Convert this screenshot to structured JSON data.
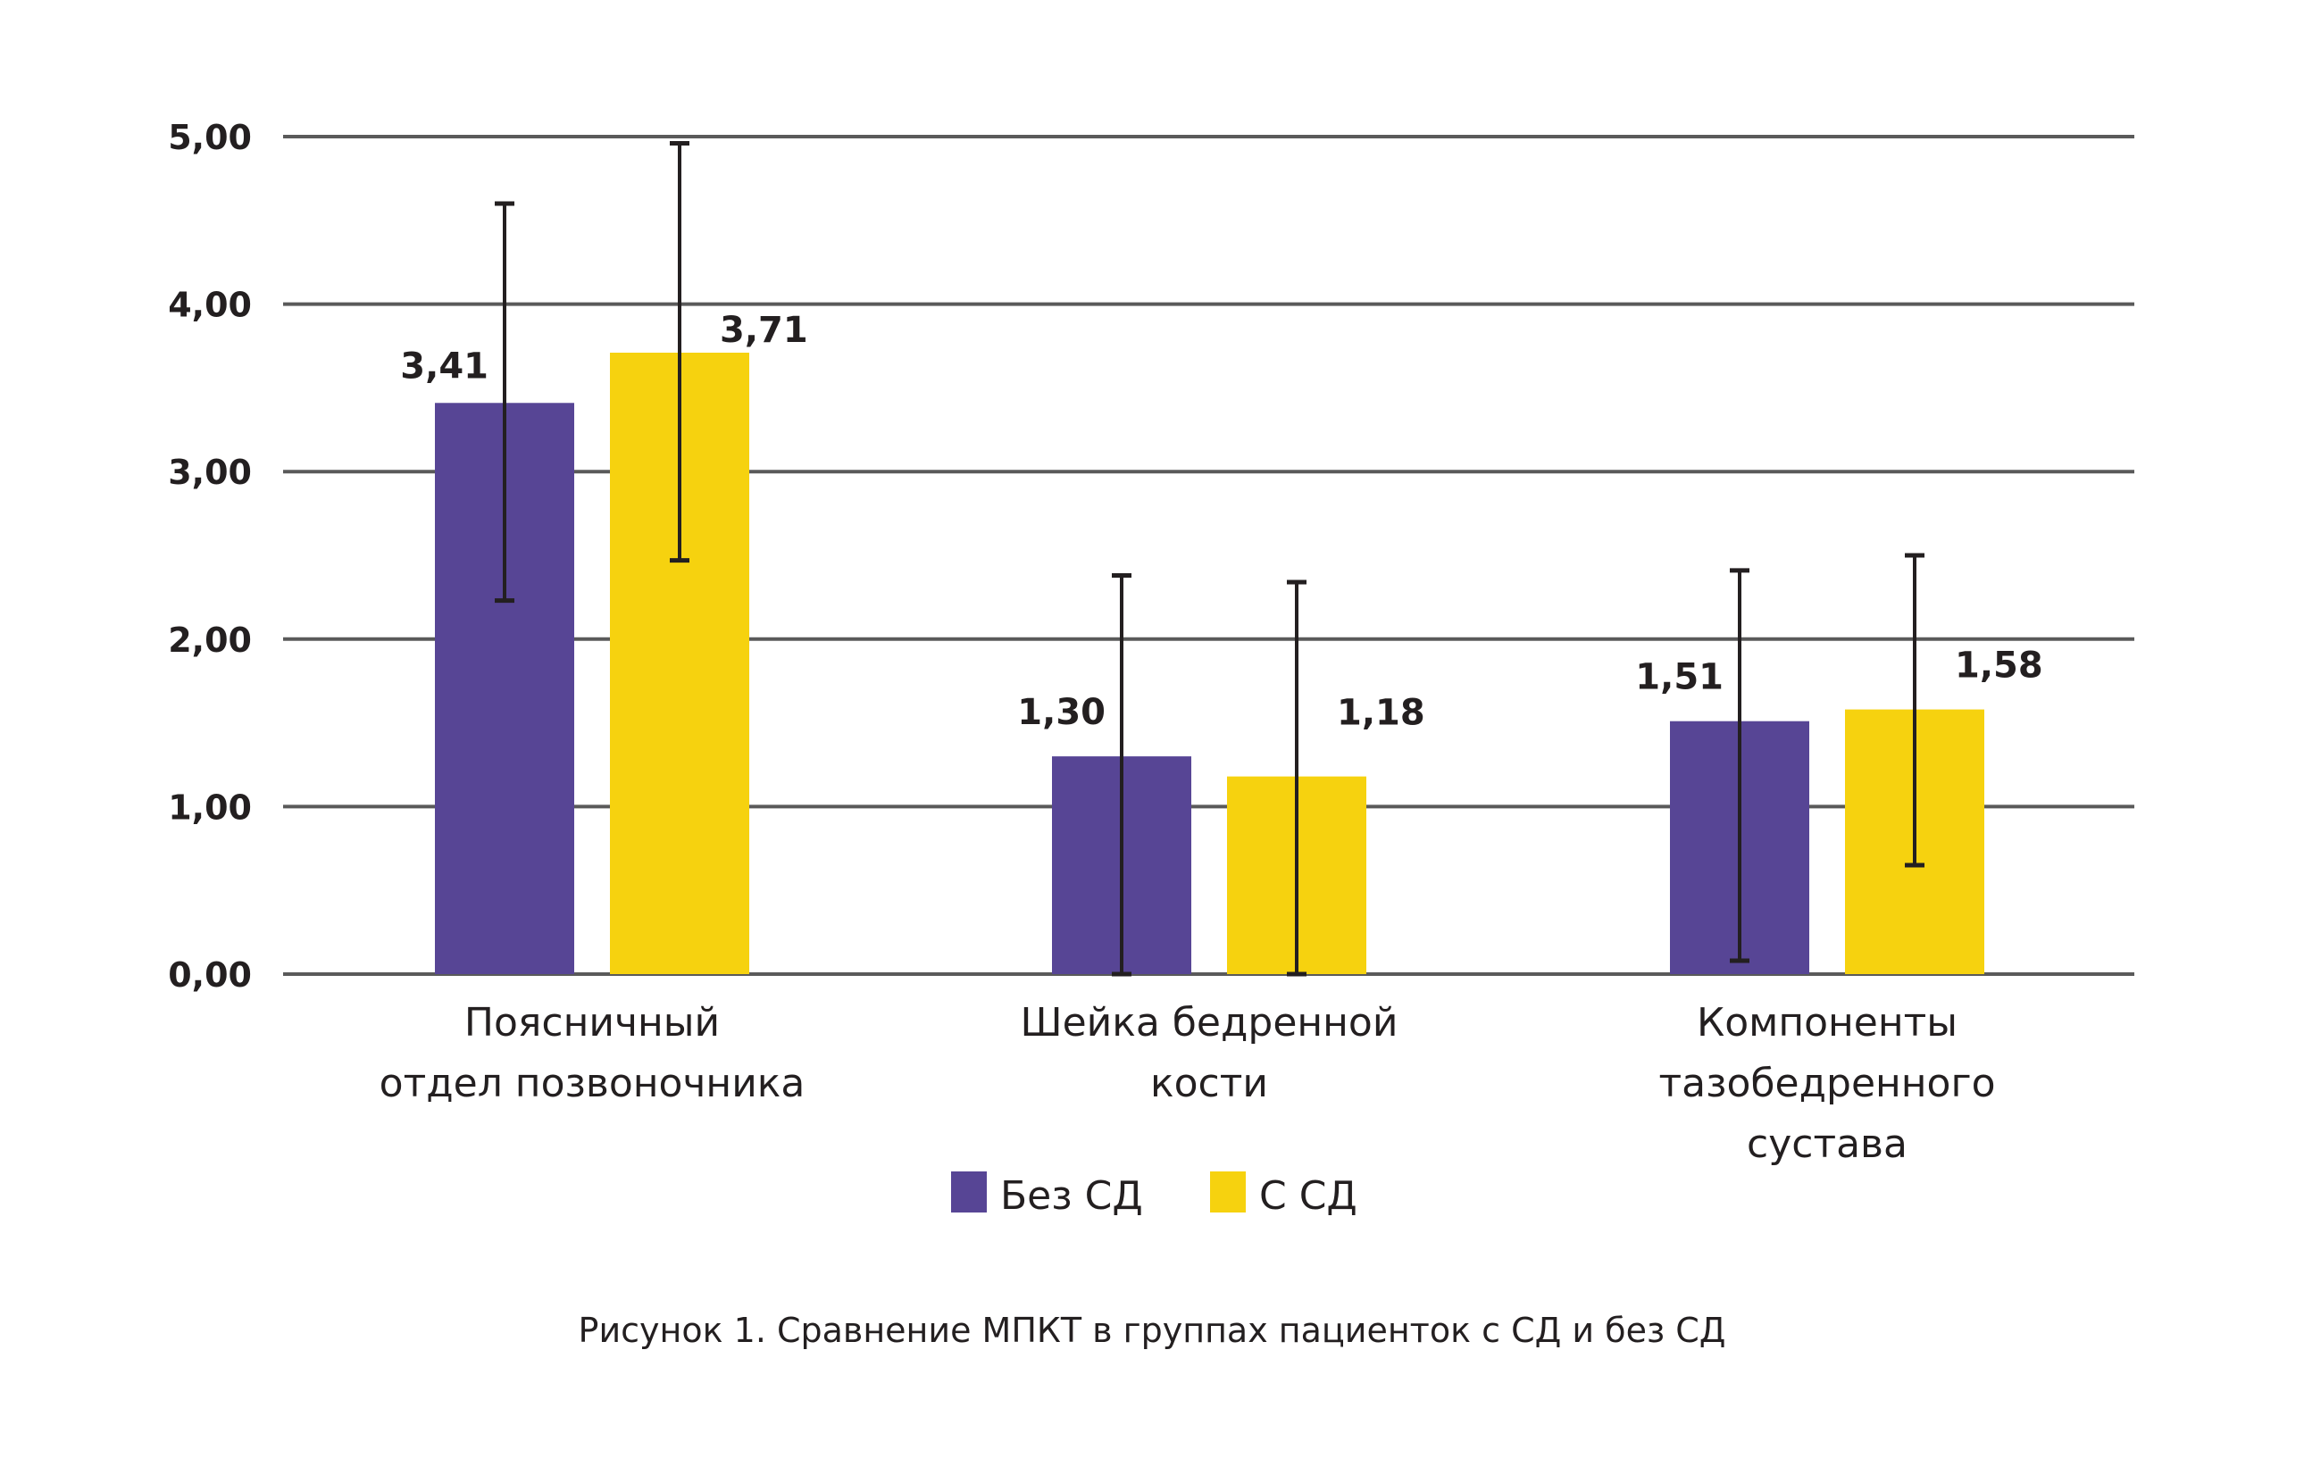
{
  "chart_data": {
    "type": "bar",
    "title": "",
    "xlabel": "",
    "ylabel": "",
    "ylim": [
      0,
      5
    ],
    "yticks": [
      "0,00",
      "1,00",
      "2,00",
      "3,00",
      "4,00",
      "5,00"
    ],
    "ytick_values": [
      0,
      1,
      2,
      3,
      4,
      5
    ],
    "grid": true,
    "legend_position": "bottom-center",
    "categories": [
      [
        "Поясничный",
        "отдел позвоночника"
      ],
      [
        "Шейка бедренной",
        "кости"
      ],
      [
        "Компоненты",
        "тазобедренного",
        "сустава"
      ]
    ],
    "series": [
      {
        "name": "Без СД",
        "color": "#574595",
        "values": [
          3.41,
          1.3,
          1.51
        ],
        "value_labels": [
          "3,41",
          "1,30",
          "1,51"
        ],
        "error_high": [
          4.6,
          2.38,
          2.41
        ],
        "error_low": [
          2.23,
          0.0,
          0.08
        ]
      },
      {
        "name": "С СД",
        "color": "#f6d20f",
        "values": [
          3.71,
          1.18,
          1.58
        ],
        "value_labels": [
          "3,71",
          "1,18",
          "1,58"
        ],
        "error_high": [
          4.96,
          2.34,
          2.5
        ],
        "error_low": [
          2.47,
          0.0,
          0.65
        ]
      }
    ],
    "caption": "Рисунок 1. Сравнение МПКТ в группах пациенток с СД и без СД"
  },
  "colors": {
    "grid": "#5a5a5a",
    "error_bar": "#231f20",
    "text": "#231f20"
  }
}
